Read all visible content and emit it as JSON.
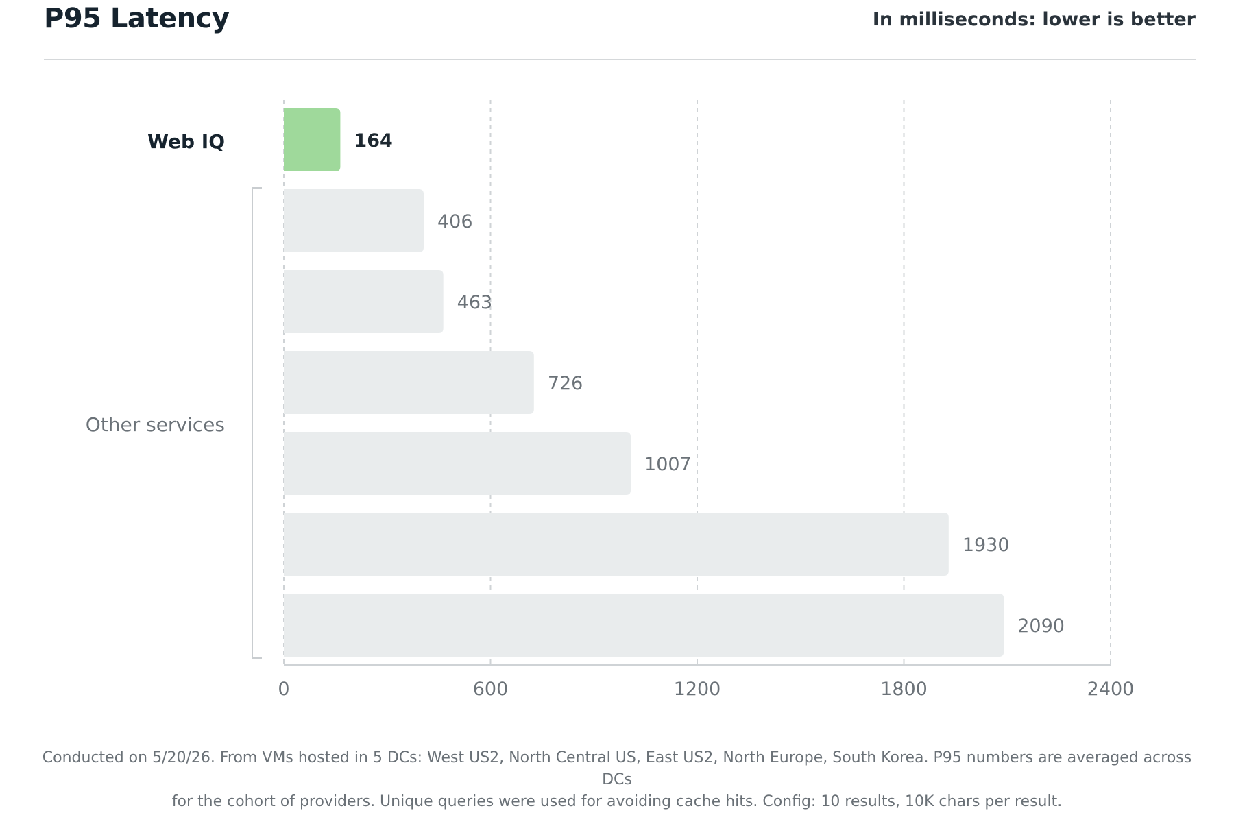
{
  "header": {
    "title": "P95 Latency",
    "subtitle": "In milliseconds: lower is better"
  },
  "chart_data": {
    "type": "bar",
    "orientation": "horizontal",
    "title": "P95 Latency",
    "subtitle": "In milliseconds: lower is better",
    "xlim": [
      0,
      2400
    ],
    "xticks": [
      0,
      600,
      1200,
      1800,
      2400
    ],
    "grid": "vertical dashed",
    "groups": [
      {
        "label": "Web IQ",
        "highlight": true,
        "color": "#9fd99b",
        "values": [
          164
        ]
      },
      {
        "label": "Other services",
        "highlight": false,
        "color": "#e9eced",
        "values": [
          406,
          463,
          726,
          1007,
          1930,
          2090
        ]
      }
    ],
    "values": [
      164,
      406,
      463,
      726,
      1007,
      1930,
      2090
    ]
  },
  "footnote": {
    "line1": "Conducted on 5/20/26. From VMs hosted in 5 DCs: West US2, North Central US, East US2, North Europe, South Korea. P95 numbers are averaged across DCs",
    "line2": "for the cohort of providers. Unique queries were used for avoiding cache hits. Config: 10 results, 10K chars per result."
  }
}
